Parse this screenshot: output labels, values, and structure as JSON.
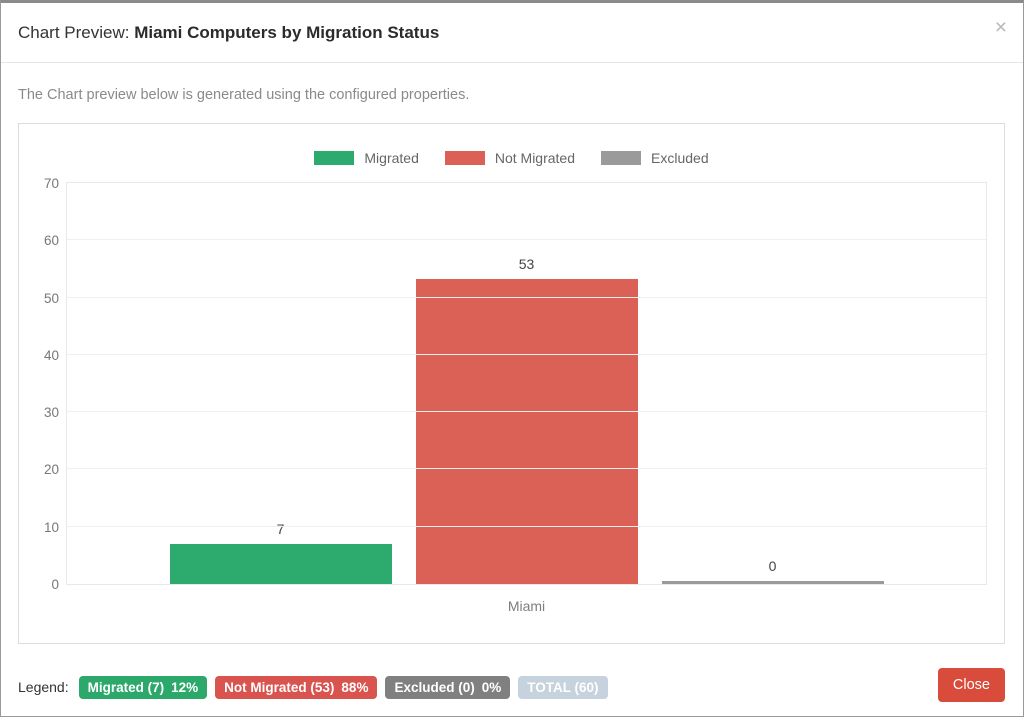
{
  "modal": {
    "title_prefix": "Chart Preview: ",
    "title_bold": "Miami Computers by Migration Status",
    "close_icon": "×",
    "subtitle": "The Chart preview below is generated using the configured properties."
  },
  "chart_data": {
    "type": "bar",
    "title": "Miami Computers by Migration Status",
    "categories": [
      "Miami"
    ],
    "series": [
      {
        "name": "Migrated",
        "values": [
          7
        ],
        "color": "#2dab6e"
      },
      {
        "name": "Not Migrated",
        "values": [
          53
        ],
        "color": "#db6156"
      },
      {
        "name": "Excluded",
        "values": [
          0
        ],
        "color": "#9a9a9a"
      }
    ],
    "ylim": [
      0,
      70
    ],
    "ytick_step": 10,
    "yticks": [
      0,
      10,
      20,
      30,
      40,
      50,
      60,
      70
    ],
    "grid": true,
    "legend_position": "top",
    "value_labels": [
      "7",
      "53",
      "0"
    ],
    "xlabel": "",
    "ylabel": ""
  },
  "footer": {
    "legend_label": "Legend:",
    "badges": [
      {
        "label": "Migrated (7)",
        "percent": "12%",
        "color": "#2ca86b"
      },
      {
        "label": "Not Migrated (53)",
        "percent": "88%",
        "color": "#d9534f"
      },
      {
        "label": "Excluded (0)",
        "percent": "0%",
        "color": "#808080"
      },
      {
        "label": "TOTAL (60)",
        "percent": "",
        "color": "#c6d2dd"
      }
    ],
    "close_button": "Close"
  }
}
